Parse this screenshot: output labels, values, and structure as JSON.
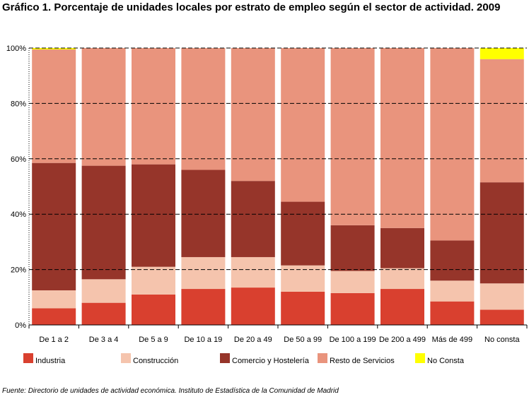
{
  "title": "Gráfico 1. Porcentaje de unidades locales por estrato de empleo según el sector de actividad. 2009",
  "source": "Fuente: Directorio de unidades de actividad económica. Instituto de Estadística de la Comunidad de Madrid",
  "colors": {
    "Industria": "#d9402f",
    "Construcción": "#f5c4ad",
    "Comercio y Hostelería": "#96352a",
    "Resto de Servicios": "#e9947d",
    "No Consta": "#ffff00"
  },
  "chart_data": {
    "type": "bar",
    "stacked": true,
    "ylim": [
      0,
      100
    ],
    "yticks": [
      "0%",
      "20%",
      "40%",
      "60%",
      "80%",
      "100%"
    ],
    "grid": "horizontal dashed",
    "legend": "bottom",
    "categories": [
      "De 1 a 2",
      "De 3 a 4",
      "De 5 a 9",
      "De 10 a 19",
      "De 20 a 49",
      "De 50 a 99",
      "De 100 a 199",
      "De 200 a 499",
      "Más de 499",
      "No consta"
    ],
    "series": [
      {
        "name": "Industria",
        "values": [
          6,
          8,
          11,
          13,
          13.5,
          12,
          11.5,
          13,
          8.5,
          5.5
        ]
      },
      {
        "name": "Construcción",
        "values": [
          6.5,
          8.5,
          10,
          11.5,
          11,
          9.5,
          8,
          7.5,
          7.5,
          9.5
        ]
      },
      {
        "name": "Comercio y Hostelería",
        "values": [
          46,
          41,
          37,
          31.5,
          27.5,
          23,
          16.5,
          14.5,
          14.5,
          36.5
        ]
      },
      {
        "name": "Resto de Servicios",
        "values": [
          41,
          42.5,
          42,
          44,
          48,
          55.5,
          64,
          65,
          69.5,
          44.5
        ]
      },
      {
        "name": "No Consta",
        "values": [
          0.5,
          0,
          0,
          0,
          0,
          0,
          0,
          0,
          0,
          4
        ]
      }
    ]
  }
}
